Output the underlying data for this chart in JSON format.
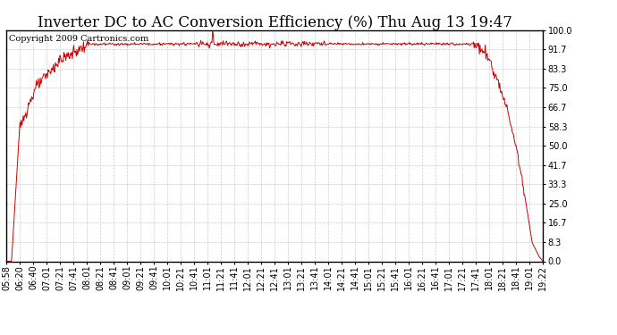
{
  "title": "Inverter DC to AC Conversion Efficiency (%) Thu Aug 13 19:47",
  "copyright_text": "Copyright 2009 Cartronics.com",
  "line_color": "#cc0000",
  "background_color": "#ffffff",
  "plot_bg_color": "#ffffff",
  "grid_color": "#cccccc",
  "ylim": [
    0.0,
    100.0
  ],
  "yticks": [
    0.0,
    8.3,
    16.7,
    25.0,
    33.3,
    41.7,
    50.0,
    58.3,
    66.7,
    75.0,
    83.3,
    91.7,
    100.0
  ],
  "xtick_labels": [
    "05:58",
    "06:20",
    "06:40",
    "07:01",
    "07:21",
    "07:41",
    "08:01",
    "08:21",
    "08:41",
    "09:01",
    "09:21",
    "09:41",
    "10:01",
    "10:21",
    "10:41",
    "11:01",
    "11:21",
    "11:41",
    "12:01",
    "12:21",
    "12:41",
    "13:01",
    "13:21",
    "13:41",
    "14:01",
    "14:21",
    "14:41",
    "15:01",
    "15:21",
    "15:41",
    "16:01",
    "16:21",
    "16:41",
    "17:01",
    "17:21",
    "17:41",
    "18:01",
    "18:21",
    "18:41",
    "19:01",
    "19:22"
  ],
  "title_fontsize": 12,
  "copyright_fontsize": 7,
  "tick_fontsize": 7,
  "line_width": 0.7,
  "grid_linestyle": "--"
}
